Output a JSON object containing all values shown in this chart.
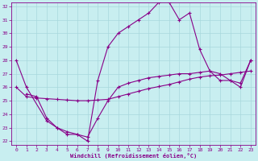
{
  "xlabel": "Windchill (Refroidissement éolien,°C)",
  "bg_color": "#c8eef0",
  "grid_color": "#a8d8dc",
  "line_color": "#880088",
  "xlim": [
    -0.5,
    23.5
  ],
  "ylim": [
    21.7,
    32.3
  ],
  "xticks": [
    0,
    1,
    2,
    3,
    4,
    5,
    6,
    7,
    8,
    9,
    10,
    11,
    12,
    13,
    14,
    15,
    16,
    17,
    18,
    19,
    20,
    21,
    22,
    23
  ],
  "yticks": [
    22,
    23,
    24,
    25,
    26,
    27,
    28,
    29,
    30,
    31,
    32
  ],
  "series1_x": [
    0,
    1,
    3,
    4,
    5,
    6,
    7,
    8,
    9,
    10,
    11,
    12,
    13,
    14,
    15,
    16,
    17,
    18,
    19,
    20,
    21,
    22,
    23
  ],
  "series1_y": [
    28,
    26,
    23.5,
    23.0,
    22.5,
    22.5,
    22.0,
    26.5,
    29.0,
    30.0,
    30.5,
    31.0,
    31.5,
    32.3,
    32.3,
    31.0,
    31.5,
    28.8,
    27.2,
    27.0,
    26.5,
    26.0,
    28.0
  ],
  "series2_x": [
    0,
    1,
    2,
    3,
    4,
    5,
    6,
    7,
    8,
    9,
    10,
    11,
    12,
    13,
    14,
    15,
    16,
    17,
    18,
    19,
    20,
    21,
    22,
    23
  ],
  "series2_y": [
    26.0,
    25.3,
    25.2,
    25.15,
    25.1,
    25.05,
    25.0,
    25.0,
    25.05,
    25.1,
    25.3,
    25.5,
    25.7,
    25.9,
    26.05,
    26.2,
    26.4,
    26.6,
    26.75,
    26.85,
    26.9,
    27.0,
    27.1,
    27.2
  ],
  "series3_x": [
    1,
    2,
    3,
    4,
    5,
    6,
    7,
    8,
    9,
    10,
    11,
    12,
    13,
    14,
    15,
    16,
    17,
    18,
    19,
    20,
    21,
    22,
    23
  ],
  "series3_y": [
    25.5,
    25.3,
    23.7,
    23.0,
    22.7,
    22.5,
    22.3,
    23.7,
    25.0,
    26.0,
    26.3,
    26.5,
    26.7,
    26.8,
    26.9,
    27.0,
    27.0,
    27.1,
    27.2,
    26.5,
    26.5,
    26.3,
    28.0
  ]
}
